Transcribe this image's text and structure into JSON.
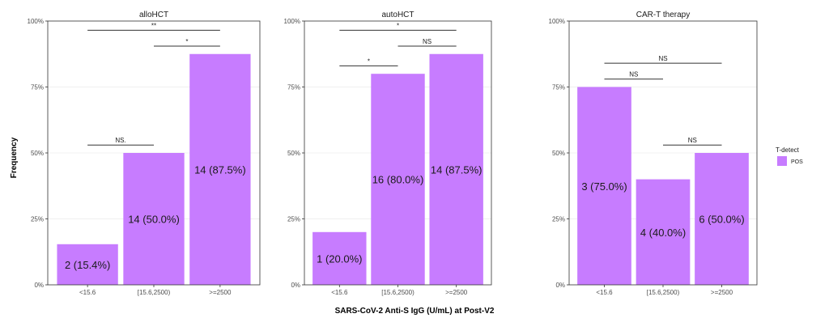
{
  "figure": {
    "x_axis_title": "SARS-CoV-2 Anti-S IgG (U/mL) at Post-V2",
    "y_axis_title": "Frequency",
    "legend": {
      "title": "T-detect",
      "entry": "POS",
      "color": "#c77cff"
    }
  },
  "chart_data": [
    {
      "type": "bar",
      "title": "alloHCT",
      "categories": [
        "<15.6",
        "[15.6,2500)",
        ">=2500"
      ],
      "values": [
        15.4,
        50.0,
        87.5
      ],
      "data_labels": [
        "2 (15.4%)",
        "14 (50.0%)",
        "14 (87.5%)"
      ],
      "ylim": [
        0,
        100
      ],
      "yticks": [
        "0%",
        "25%",
        "50%",
        "75%",
        "100%"
      ],
      "significance": [
        {
          "from": 0,
          "to": 1,
          "label": "NS."
        },
        {
          "from": 1,
          "to": 2,
          "label": "*"
        },
        {
          "from": 0,
          "to": 2,
          "label": "**"
        }
      ]
    },
    {
      "type": "bar",
      "title": "autoHCT",
      "categories": [
        "<15.6",
        "[15.6,2500)",
        ">=2500"
      ],
      "values": [
        20.0,
        80.0,
        87.5
      ],
      "data_labels": [
        "1 (20.0%)",
        "16 (80.0%)",
        "14 (87.5%)"
      ],
      "ylim": [
        0,
        100
      ],
      "yticks": [
        "0%",
        "25%",
        "50%",
        "75%",
        "100%"
      ],
      "significance": [
        {
          "from": 0,
          "to": 1,
          "label": "*"
        },
        {
          "from": 1,
          "to": 2,
          "label": "NS"
        },
        {
          "from": 0,
          "to": 2,
          "label": "*"
        }
      ]
    },
    {
      "type": "bar",
      "title": "CAR-T therapy",
      "categories": [
        "<15.6",
        "[15.6,2500)",
        ">=2500"
      ],
      "values": [
        75.0,
        40.0,
        50.0
      ],
      "data_labels": [
        "3 (75.0%)",
        "4 (40.0%)",
        "6 (50.0%)"
      ],
      "ylim": [
        0,
        100
      ],
      "yticks": [
        "0%",
        "25%",
        "50%",
        "75%",
        "100%"
      ],
      "significance": [
        {
          "from": 0,
          "to": 1,
          "label": "NS"
        },
        {
          "from": 1,
          "to": 2,
          "label": "NS"
        },
        {
          "from": 0,
          "to": 2,
          "label": "NS"
        }
      ]
    }
  ]
}
